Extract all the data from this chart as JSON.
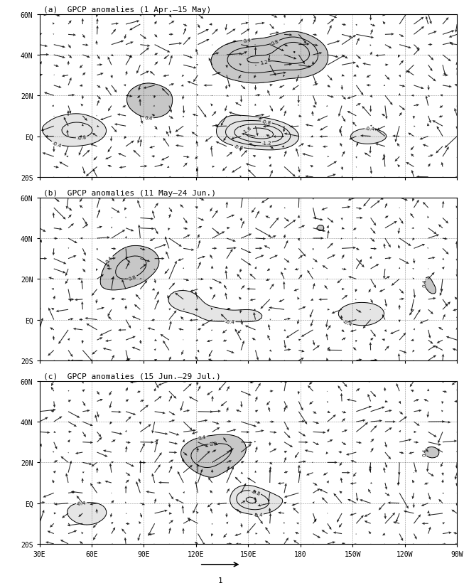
{
  "panels": [
    {
      "label": "(a)",
      "title": "GPCP anomalies (1 Apr.–15 May)"
    },
    {
      "label": "(b)",
      "title": "GPCP anomalies (11 May–24 Jun.)"
    },
    {
      "label": "(c)",
      "title": "GPCP anomalies (15 Jun.–29 Jul.)"
    }
  ],
  "lon_range": [
    30,
    270
  ],
  "lat_range": [
    -20,
    60
  ],
  "lon_ticks": [
    30,
    60,
    90,
    120,
    150,
    180,
    210,
    240,
    270
  ],
  "lon_labels": [
    "30E",
    "60E",
    "90E",
    "120E",
    "150E",
    "180",
    "150W",
    "120W",
    "90W"
  ],
  "lat_ticks": [
    -20,
    0,
    20,
    40,
    60
  ],
  "lat_labels": [
    "20S",
    "EQ",
    "20N",
    "40N",
    "60N"
  ],
  "contour_levels_pos": [
    0.4,
    0.8,
    1.2,
    1.6,
    2.0
  ],
  "contour_levels_neg": [
    -2.0,
    -1.6,
    -1.2,
    -0.8,
    -0.4
  ],
  "background_color": "#ffffff",
  "shade_color_pos": "#aaaaaa",
  "shade_color_neg": "#cccccc",
  "figsize": [
    6.53,
    8.28
  ],
  "dpi": 100,
  "font_family": "monospace"
}
